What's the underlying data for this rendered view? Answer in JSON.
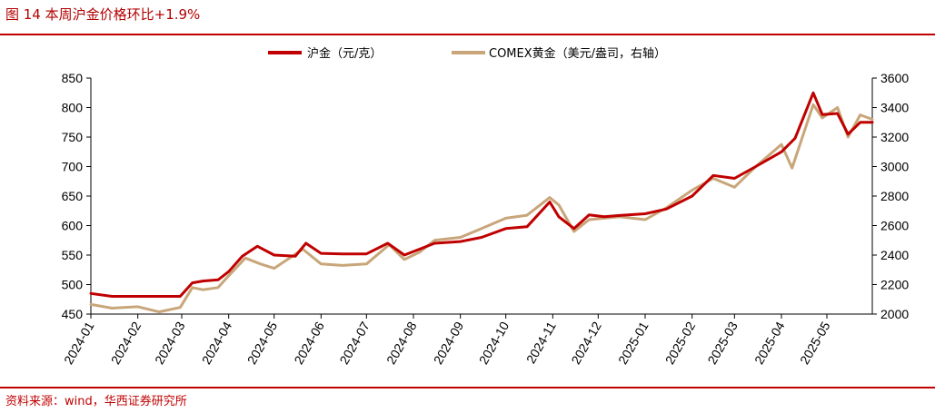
{
  "figure": {
    "title": "图 14    本周沪金价格环比+1.9%",
    "source": "资料来源：wind，华西证券研究所"
  },
  "colors": {
    "series1": "#c00000",
    "series2": "#c8a67a",
    "accent": "#c00000"
  },
  "chart_data": {
    "type": "line",
    "title": "",
    "legend_position": "top-center",
    "grid": false,
    "x_tick_labels": [
      "2024-01",
      "2024-02",
      "2024-03",
      "2024-04",
      "2024-05",
      "2024-06",
      "2024-07",
      "2024-08",
      "2024-09",
      "2024-10",
      "2024-11",
      "2024-12",
      "2025-01",
      "2025-02",
      "2025-03",
      "2025-04",
      "2025-05"
    ],
    "xlim": [
      "2024-01-01",
      "2025-05-31"
    ],
    "y_left": {
      "ylim": [
        450,
        850
      ],
      "ticks": [
        450,
        500,
        550,
        600,
        650,
        700,
        750,
        800,
        850
      ]
    },
    "y_right": {
      "ylim": [
        2000,
        3600
      ],
      "ticks": [
        2000,
        2200,
        2400,
        2600,
        2800,
        3000,
        3200,
        3400,
        3600
      ]
    },
    "series": [
      {
        "name": "沪金（元/克）",
        "axis": "left",
        "points": [
          [
            "2024-01-01",
            485
          ],
          [
            "2024-01-15",
            480
          ],
          [
            "2024-02-01",
            480
          ],
          [
            "2024-02-15",
            480
          ],
          [
            "2024-02-29",
            480
          ],
          [
            "2024-03-08",
            503
          ],
          [
            "2024-03-15",
            506
          ],
          [
            "2024-03-25",
            508
          ],
          [
            "2024-04-01",
            522
          ],
          [
            "2024-04-10",
            548
          ],
          [
            "2024-04-20",
            565
          ],
          [
            "2024-05-01",
            550
          ],
          [
            "2024-05-15",
            548
          ],
          [
            "2024-05-22",
            570
          ],
          [
            "2024-06-01",
            553
          ],
          [
            "2024-06-15",
            552
          ],
          [
            "2024-07-01",
            552
          ],
          [
            "2024-07-15",
            570
          ],
          [
            "2024-07-26",
            550
          ],
          [
            "2024-08-05",
            560
          ],
          [
            "2024-08-15",
            570
          ],
          [
            "2024-09-01",
            573
          ],
          [
            "2024-09-15",
            580
          ],
          [
            "2024-10-01",
            595
          ],
          [
            "2024-10-15",
            598
          ],
          [
            "2024-10-30",
            640
          ],
          [
            "2024-11-05",
            615
          ],
          [
            "2024-11-15",
            595
          ],
          [
            "2024-11-25",
            618
          ],
          [
            "2024-12-05",
            615
          ],
          [
            "2024-12-15",
            617
          ],
          [
            "2025-01-01",
            620
          ],
          [
            "2025-01-15",
            628
          ],
          [
            "2025-02-01",
            650
          ],
          [
            "2025-02-15",
            685
          ],
          [
            "2025-03-01",
            680
          ],
          [
            "2025-03-15",
            700
          ],
          [
            "2025-04-01",
            725
          ],
          [
            "2025-04-10",
            748
          ],
          [
            "2025-04-22",
            825
          ],
          [
            "2025-04-28",
            788
          ],
          [
            "2025-05-08",
            790
          ],
          [
            "2025-05-15",
            755
          ],
          [
            "2025-05-23",
            775
          ],
          [
            "2025-05-31",
            775
          ]
        ]
      },
      {
        "name": "COMEX黄金（美元/盎司，右轴）",
        "axis": "right",
        "points": [
          [
            "2024-01-01",
            2065
          ],
          [
            "2024-01-15",
            2040
          ],
          [
            "2024-02-01",
            2050
          ],
          [
            "2024-02-15",
            2015
          ],
          [
            "2024-02-29",
            2045
          ],
          [
            "2024-03-08",
            2180
          ],
          [
            "2024-03-15",
            2165
          ],
          [
            "2024-03-25",
            2180
          ],
          [
            "2024-04-01",
            2260
          ],
          [
            "2024-04-12",
            2380
          ],
          [
            "2024-04-22",
            2340
          ],
          [
            "2024-05-01",
            2310
          ],
          [
            "2024-05-20",
            2440
          ],
          [
            "2024-06-01",
            2340
          ],
          [
            "2024-06-15",
            2330
          ],
          [
            "2024-07-01",
            2340
          ],
          [
            "2024-07-16",
            2470
          ],
          [
            "2024-07-26",
            2370
          ],
          [
            "2024-08-05",
            2420
          ],
          [
            "2024-08-15",
            2500
          ],
          [
            "2024-09-01",
            2520
          ],
          [
            "2024-09-15",
            2580
          ],
          [
            "2024-10-01",
            2650
          ],
          [
            "2024-10-15",
            2670
          ],
          [
            "2024-10-30",
            2790
          ],
          [
            "2024-11-05",
            2740
          ],
          [
            "2024-11-15",
            2560
          ],
          [
            "2024-11-25",
            2640
          ],
          [
            "2024-12-05",
            2650
          ],
          [
            "2024-12-15",
            2660
          ],
          [
            "2025-01-01",
            2640
          ],
          [
            "2025-01-15",
            2720
          ],
          [
            "2025-02-01",
            2840
          ],
          [
            "2025-02-15",
            2920
          ],
          [
            "2025-03-01",
            2860
          ],
          [
            "2025-03-15",
            3000
          ],
          [
            "2025-04-01",
            3150
          ],
          [
            "2025-04-08",
            2990
          ],
          [
            "2025-04-22",
            3420
          ],
          [
            "2025-04-28",
            3330
          ],
          [
            "2025-05-08",
            3400
          ],
          [
            "2025-05-15",
            3200
          ],
          [
            "2025-05-23",
            3350
          ],
          [
            "2025-05-31",
            3320
          ]
        ]
      }
    ]
  }
}
